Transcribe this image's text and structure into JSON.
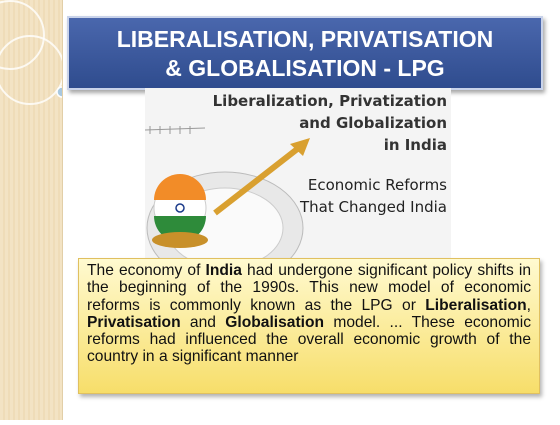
{
  "title": {
    "lines": [
      "LIBERALISATION, PRIVATISATION",
      "& GLOBALISATION - LPG"
    ]
  },
  "image": {
    "heading": [
      "Liberalization, Privatization",
      "and Globalization",
      "in India"
    ],
    "subheading": [
      "Economic Reforms",
      "That Changed India"
    ]
  },
  "body": {
    "runs": [
      {
        "text": "The economy of ",
        "bold": false
      },
      {
        "text": "India",
        "bold": true
      },
      {
        "text": " had undergone significant policy shifts in the beginning of the 1990s. This new model of economic reforms is commonly known as the LPG or ",
        "bold": false
      },
      {
        "text": "Liberalisation",
        "bold": true
      },
      {
        "text": ", ",
        "bold": false
      },
      {
        "text": "Privatisation",
        "bold": true
      },
      {
        "text": " and ",
        "bold": false
      },
      {
        "text": "Globalisation",
        "bold": true
      },
      {
        "text": " model. ... These economic reforms had influenced the overall economic growth of the country in a significant manner",
        "bold": false
      }
    ]
  }
}
